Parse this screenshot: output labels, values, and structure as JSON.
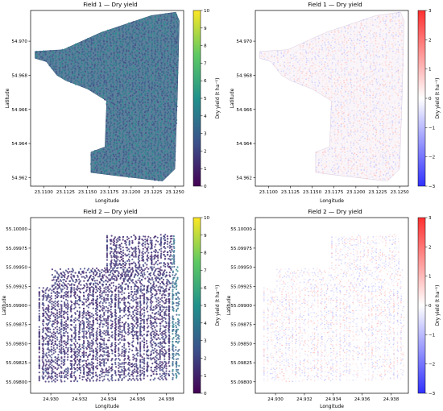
{
  "chart_data": [
    {
      "type": "scatter",
      "title": "Field 1 — Dry yield",
      "xlabel": "Longitude",
      "ylabel": "Latitude",
      "xlim": [
        23.1085,
        23.126
      ],
      "ylim": [
        54.9615,
        54.9718
      ],
      "xticks": [
        "23.1100",
        "23.1125",
        "23.1150",
        "23.1175",
        "23.1200",
        "23.1225",
        "23.1250"
      ],
      "xtick_values": [
        23.11,
        23.1125,
        23.115,
        23.1175,
        23.12,
        23.1225,
        23.125
      ],
      "yticks": [
        "54.962",
        "54.964",
        "54.966",
        "54.968",
        "54.970"
      ],
      "ytick_values": [
        54.962,
        54.964,
        54.966,
        54.968,
        54.97
      ],
      "colorbar": {
        "label": "Dry yield (t ha⁻¹)",
        "range": [
          0,
          10
        ],
        "ticks": [
          "0",
          "1",
          "2",
          "3",
          "4",
          "5",
          "6",
          "7",
          "8",
          "9",
          "10"
        ],
        "tick_values": [
          0,
          1,
          2,
          3,
          4,
          5,
          6,
          7,
          8,
          9,
          10
        ],
        "colormap": "viridis"
      },
      "field_outline": [
        [
          23.1122,
          54.9695
        ],
        [
          23.1165,
          54.9705
        ],
        [
          23.1223,
          54.9715
        ],
        [
          23.1251,
          54.9717
        ],
        [
          23.1255,
          54.9712
        ],
        [
          23.1253,
          54.967
        ],
        [
          23.125,
          54.9625
        ],
        [
          23.1236,
          54.9618
        ],
        [
          23.1185,
          54.9621
        ],
        [
          23.1154,
          54.9623
        ],
        [
          23.1154,
          54.9635
        ],
        [
          23.117,
          54.9638
        ],
        [
          23.1172,
          54.9665
        ],
        [
          23.115,
          54.9672
        ],
        [
          23.1125,
          54.9677
        ],
        [
          23.1115,
          54.968
        ],
        [
          23.1103,
          54.9688
        ],
        [
          23.109,
          54.969
        ],
        [
          23.109,
          54.9694
        ]
      ],
      "typical_value": 3.5
    },
    {
      "type": "scatter",
      "title": "Field 1 — Dry yield",
      "xlabel": "Longitude",
      "ylabel": "Latitude",
      "xlim": [
        23.1085,
        23.126
      ],
      "ylim": [
        54.9615,
        54.9718
      ],
      "xticks": [
        "23.1100",
        "23.1125",
        "23.1150",
        "23.1175",
        "23.1200",
        "23.1225",
        "23.1250"
      ],
      "xtick_values": [
        23.11,
        23.1125,
        23.115,
        23.1175,
        23.12,
        23.1225,
        23.125
      ],
      "yticks": [
        "54.962",
        "54.964",
        "54.966",
        "54.968",
        "54.970"
      ],
      "ytick_values": [
        54.962,
        54.964,
        54.966,
        54.968,
        54.97
      ],
      "colorbar": {
        "label": "Dry yield (t ha⁻¹)",
        "range": [
          -3,
          3
        ],
        "ticks": [
          "−3",
          "−2",
          "−1",
          "0",
          "1",
          "2",
          "3"
        ],
        "tick_values": [
          -3,
          -2,
          -1,
          0,
          1,
          2,
          3
        ],
        "colormap": "bwr"
      },
      "field_outline": [
        [
          23.1122,
          54.9695
        ],
        [
          23.1165,
          54.9705
        ],
        [
          23.1223,
          54.9715
        ],
        [
          23.1251,
          54.9717
        ],
        [
          23.1255,
          54.9712
        ],
        [
          23.1253,
          54.967
        ],
        [
          23.125,
          54.9625
        ],
        [
          23.1236,
          54.9618
        ],
        [
          23.1185,
          54.9621
        ],
        [
          23.1154,
          54.9623
        ],
        [
          23.1154,
          54.9635
        ],
        [
          23.117,
          54.9638
        ],
        [
          23.1172,
          54.9665
        ],
        [
          23.115,
          54.9672
        ],
        [
          23.1125,
          54.9677
        ],
        [
          23.1115,
          54.968
        ],
        [
          23.1103,
          54.9688
        ],
        [
          23.109,
          54.969
        ],
        [
          23.109,
          54.9694
        ]
      ],
      "typical_value": 0
    },
    {
      "type": "scatter",
      "title": "Field 2 — Dry yield",
      "xlabel": "Longitude",
      "ylabel": "Latitude",
      "xlim": [
        24.9286,
        24.9392
      ],
      "ylim": [
        55.09785,
        55.10015
      ],
      "xticks": [
        "24.930",
        "24.932",
        "24.934",
        "24.936",
        "24.938"
      ],
      "xtick_values": [
        24.93,
        24.932,
        24.934,
        24.936,
        24.938
      ],
      "yticks": [
        "55.09800",
        "55.09825",
        "55.09850",
        "55.09875",
        "55.09900",
        "55.09925",
        "55.09950",
        "55.09975",
        "55.10000"
      ],
      "ytick_values": [
        55.098,
        55.09825,
        55.0985,
        55.09875,
        55.099,
        55.09925,
        55.0995,
        55.09975,
        55.1
      ],
      "colorbar": {
        "label": "Dry yield (t ha⁻¹)",
        "range": [
          0,
          10
        ],
        "ticks": [
          "0",
          "1",
          "2",
          "3",
          "4",
          "5",
          "6",
          "7",
          "8",
          "9",
          "10"
        ],
        "tick_values": [
          0,
          1,
          2,
          3,
          4,
          5,
          6,
          7,
          8,
          9,
          10
        ],
        "colormap": "viridis"
      },
      "typical_value": 1.5
    },
    {
      "type": "scatter",
      "title": "Field 2 — Dry yield",
      "xlabel": "Longitude",
      "ylabel": "Latitude",
      "xlim": [
        24.9286,
        24.9392
      ],
      "ylim": [
        55.09785,
        55.10015
      ],
      "xticks": [
        "24.930",
        "24.932",
        "24.934",
        "24.936",
        "24.938"
      ],
      "xtick_values": [
        24.93,
        24.932,
        24.934,
        24.936,
        24.938
      ],
      "yticks": [
        "55.09800",
        "55.09825",
        "55.09850",
        "55.09875",
        "55.09900",
        "55.09925",
        "55.09950",
        "55.09975",
        "55.10000"
      ],
      "ytick_values": [
        55.098,
        55.09825,
        55.0985,
        55.09875,
        55.099,
        55.09925,
        55.0995,
        55.09975,
        55.1
      ],
      "colorbar": {
        "label": "Dry yield (t ha⁻¹)",
        "range": [
          -3,
          3
        ],
        "ticks": [
          "−3",
          "−2",
          "−1",
          "0",
          "1",
          "2",
          "3"
        ],
        "tick_values": [
          -3,
          -2,
          -1,
          0,
          1,
          2,
          3
        ],
        "colormap": "bwr"
      },
      "typical_value": 0
    }
  ]
}
